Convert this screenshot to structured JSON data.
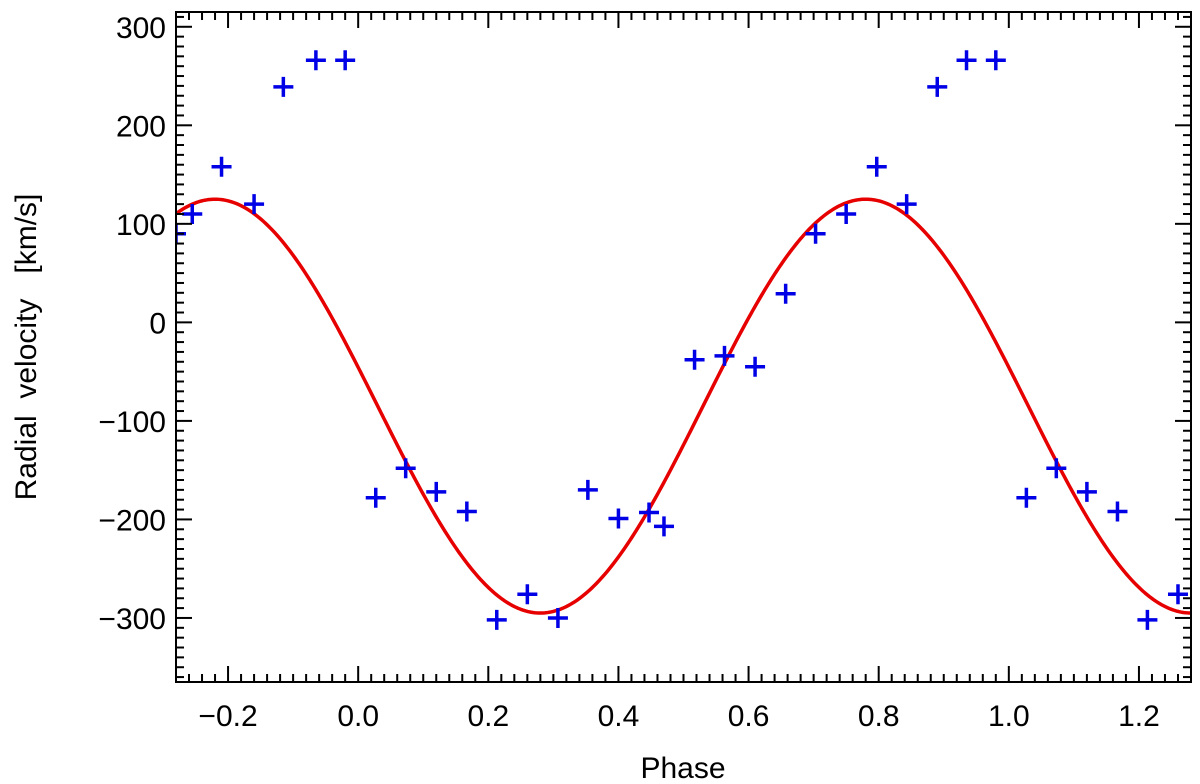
{
  "chart_data": {
    "type": "scatter",
    "title": "",
    "xlabel": "Phase",
    "ylabel": "Radial  velocity   [km/s]",
    "xlim": [
      -0.28,
      1.28
    ],
    "ylim": [
      -365,
      315
    ],
    "x_ticks": [
      -0.2,
      0.0,
      0.2,
      0.4,
      0.6,
      0.8,
      1.0,
      1.2
    ],
    "x_tick_labels": [
      "−0.2",
      "0.0",
      "0.2",
      "0.4",
      "0.6",
      "0.8",
      "1.0",
      "1.2"
    ],
    "y_ticks": [
      -300,
      -200,
      -100,
      0,
      100,
      200,
      300
    ],
    "y_tick_labels": [
      "−300",
      "−200",
      "−100",
      "0",
      "100",
      "200",
      "300"
    ],
    "grid": false,
    "series": [
      {
        "kind": "points",
        "marker": "plus",
        "color": "#0000e6",
        "x": [
          -0.28,
          -0.255,
          -0.21,
          -0.16,
          -0.115,
          -0.065,
          -0.02,
          0.027,
          0.073,
          0.12,
          0.167,
          0.213,
          0.26,
          0.307,
          0.353,
          0.4,
          0.447,
          0.47,
          0.517,
          0.563,
          0.61,
          0.657,
          0.703,
          0.75,
          0.797,
          0.843,
          0.89,
          0.935,
          0.98,
          1.027,
          1.073,
          1.12,
          1.167,
          1.213,
          1.26
        ],
        "y": [
          90,
          110,
          158,
          120,
          239,
          266,
          266,
          -178,
          -148,
          -172,
          -192,
          -302,
          -276,
          -300,
          -170,
          -199,
          -193,
          -207,
          -38,
          -34,
          -45,
          29,
          90,
          110,
          158,
          120,
          239,
          266,
          266,
          -178,
          -148,
          -172,
          -192,
          -302,
          -276
        ]
      },
      {
        "kind": "line",
        "color": "#e60000",
        "model": "sine",
        "mean": -85,
        "amplitude": 210,
        "peak_phase": 0.78,
        "period": 1.0
      }
    ]
  }
}
